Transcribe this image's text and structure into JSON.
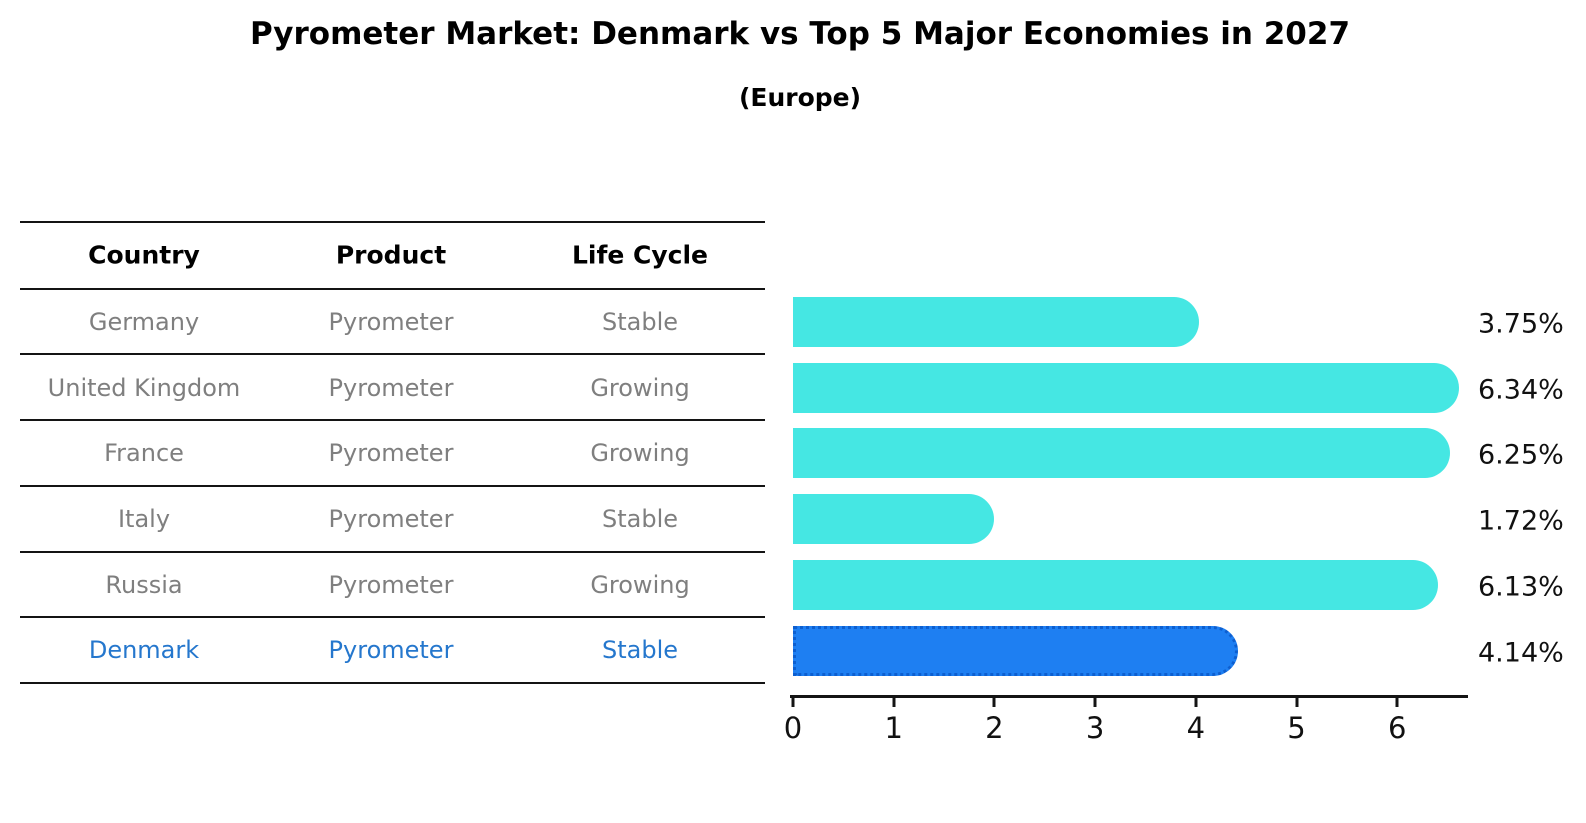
{
  "title": "Pyrometer Market: Denmark vs Top 5 Major Economies in 2027",
  "subtitle": "(Europe)",
  "table": {
    "headers": [
      "Country",
      "Product",
      "Life Cycle"
    ],
    "rows": [
      {
        "country": "Germany",
        "product": "Pyrometer",
        "life_cycle": "Stable",
        "highlight": false
      },
      {
        "country": "United Kingdom",
        "product": "Pyrometer",
        "life_cycle": "Growing",
        "highlight": false
      },
      {
        "country": "France",
        "product": "Pyrometer",
        "life_cycle": "Growing",
        "highlight": false
      },
      {
        "country": "Italy",
        "product": "Pyrometer",
        "life_cycle": "Stable",
        "highlight": false
      },
      {
        "country": "Russia",
        "product": "Pyrometer",
        "life_cycle": "Growing",
        "highlight": false
      },
      {
        "country": "Denmark",
        "product": "Pyrometer",
        "life_cycle": "Stable",
        "highlight": true
      }
    ]
  },
  "chart_data": {
    "type": "bar",
    "orientation": "horizontal",
    "title": "Pyrometer Market: Denmark vs Top 5 Major Economies in 2027",
    "subtitle": "(Europe)",
    "categories": [
      "Germany",
      "United Kingdom",
      "France",
      "Italy",
      "Russia",
      "Denmark"
    ],
    "values": [
      3.75,
      6.34,
      6.25,
      1.72,
      6.13,
      4.14
    ],
    "value_labels": [
      "3.75%",
      "6.34%",
      "6.25%",
      "1.72%",
      "6.13%",
      "4.14%"
    ],
    "highlight_category": "Denmark",
    "x_ticks": [
      "0",
      "1",
      "2",
      "3",
      "4",
      "5",
      "6"
    ],
    "xlim": [
      0,
      6.7
    ],
    "xlabel": "",
    "ylabel": "",
    "grid": false,
    "legend": false
  },
  "colors": {
    "bar_default": "#45e7e3",
    "bar_highlight": "#1e7ff2",
    "bar_highlight_border": "#0d5fd0",
    "highlight_text": "#2577cd",
    "row_text": "#7f7f7f",
    "axis": "#141414"
  }
}
